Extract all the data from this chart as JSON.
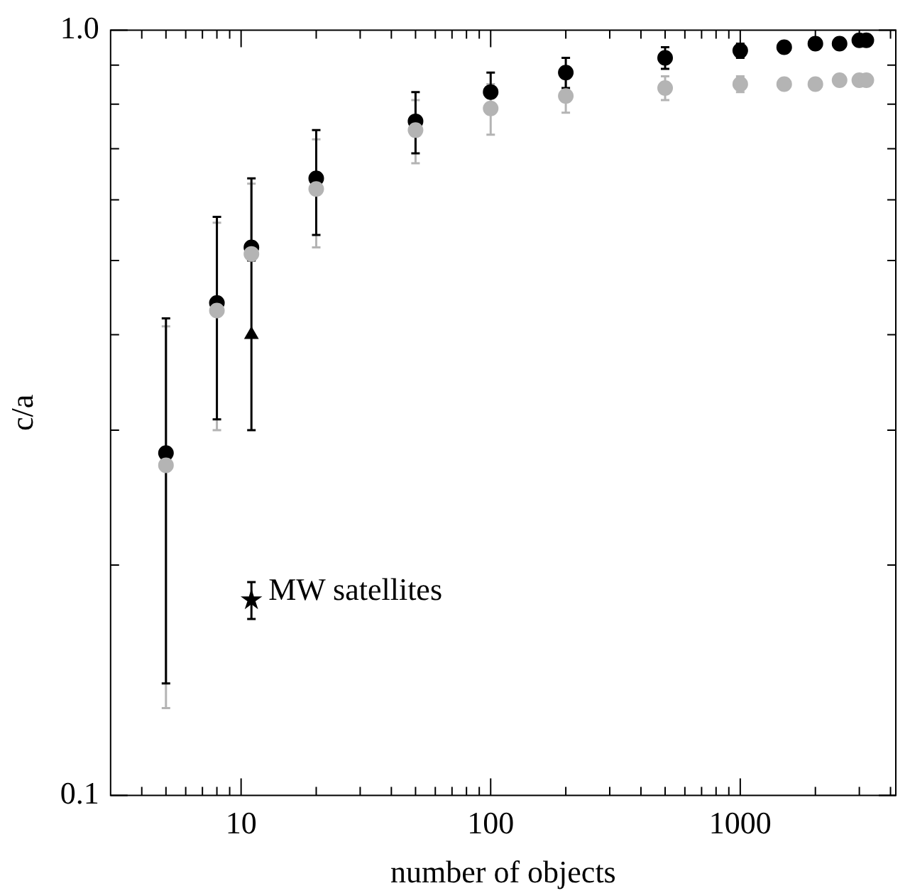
{
  "chart_data": {
    "type": "scatter",
    "xlabel": "number of objects",
    "ylabel": "c/a",
    "log": "xy",
    "grid": false,
    "legend": false,
    "xlim": [
      3,
      4200
    ],
    "ylim": [
      0.1,
      1.0
    ],
    "xticks": [
      {
        "value": 4,
        "label": null
      },
      {
        "value": 5,
        "label": null
      },
      {
        "value": 6,
        "label": null
      },
      {
        "value": 7,
        "label": null
      },
      {
        "value": 8,
        "label": null
      },
      {
        "value": 9,
        "label": null
      },
      {
        "value": 10,
        "label": "10"
      },
      {
        "value": 20,
        "label": null
      },
      {
        "value": 30,
        "label": null
      },
      {
        "value": 40,
        "label": null
      },
      {
        "value": 50,
        "label": null
      },
      {
        "value": 60,
        "label": null
      },
      {
        "value": 70,
        "label": null
      },
      {
        "value": 80,
        "label": null
      },
      {
        "value": 90,
        "label": null
      },
      {
        "value": 100,
        "label": "100"
      },
      {
        "value": 200,
        "label": null
      },
      {
        "value": 300,
        "label": null
      },
      {
        "value": 400,
        "label": null
      },
      {
        "value": 500,
        "label": null
      },
      {
        "value": 600,
        "label": null
      },
      {
        "value": 700,
        "label": null
      },
      {
        "value": 800,
        "label": null
      },
      {
        "value": 900,
        "label": null
      },
      {
        "value": 1000,
        "label": "1000"
      },
      {
        "value": 2000,
        "label": null
      },
      {
        "value": 3000,
        "label": null
      },
      {
        "value": 4000,
        "label": null
      }
    ],
    "yticks": [
      {
        "value": 0.1,
        "label": "0.1"
      },
      {
        "value": 0.2,
        "label": null
      },
      {
        "value": 0.3,
        "label": null
      },
      {
        "value": 0.4,
        "label": null
      },
      {
        "value": 0.5,
        "label": null
      },
      {
        "value": 0.6,
        "label": null
      },
      {
        "value": 0.7,
        "label": null
      },
      {
        "value": 0.8,
        "label": null
      },
      {
        "value": 0.9,
        "label": null
      },
      {
        "value": 1.0,
        "label": "1.0"
      }
    ],
    "series": [
      {
        "color": "#b4b4b4",
        "marker": "circle",
        "x": [
          5,
          8,
          11,
          20,
          50,
          100,
          200,
          500,
          1000,
          1500,
          2000,
          2500,
          3000,
          3200
        ],
        "values": [
          0.27,
          0.43,
          0.51,
          0.62,
          0.74,
          0.79,
          0.82,
          0.84,
          0.85,
          0.85,
          0.85,
          0.86,
          0.86,
          0.86
        ],
        "errors": [
          [
            0.13,
            0.41
          ],
          [
            0.3,
            0.56
          ],
          [
            0.51,
            0.63
          ],
          [
            0.52,
            0.72
          ],
          [
            0.67,
            0.81
          ],
          [
            0.73,
            0.85
          ],
          [
            0.78,
            0.87
          ],
          [
            0.81,
            0.87
          ],
          [
            0.83,
            0.87
          ],
          null,
          null,
          null,
          null,
          null
        ]
      },
      {
        "color": "#000000",
        "marker": "circle",
        "x": [
          5,
          8,
          11,
          20,
          50,
          100,
          200,
          500,
          1000,
          1500,
          2000,
          2500,
          3000,
          3200
        ],
        "values": [
          0.28,
          0.44,
          0.52,
          0.64,
          0.76,
          0.83,
          0.88,
          0.92,
          0.94,
          0.95,
          0.96,
          0.96,
          0.97,
          0.97
        ],
        "errors": [
          [
            0.14,
            0.42
          ],
          [
            0.31,
            0.57
          ],
          [
            0.52,
            0.64
          ],
          [
            0.54,
            0.74
          ],
          [
            0.69,
            0.83
          ],
          [
            0.83,
            0.88
          ],
          [
            0.84,
            0.92
          ],
          [
            0.89,
            0.95
          ],
          [
            0.92,
            0.96
          ],
          null,
          null,
          null,
          null,
          null
        ]
      },
      {
        "color": "#000000",
        "marker": "triangle",
        "x": [
          11
        ],
        "values": [
          0.4
        ],
        "errors": [
          [
            0.3,
            0.5
          ]
        ]
      },
      {
        "name": "MW satellites",
        "color": "#000000",
        "marker": "star",
        "x": [
          11
        ],
        "values": [
          0.18
        ],
        "errors": [
          [
            0.17,
            0.19
          ]
        ]
      }
    ]
  }
}
